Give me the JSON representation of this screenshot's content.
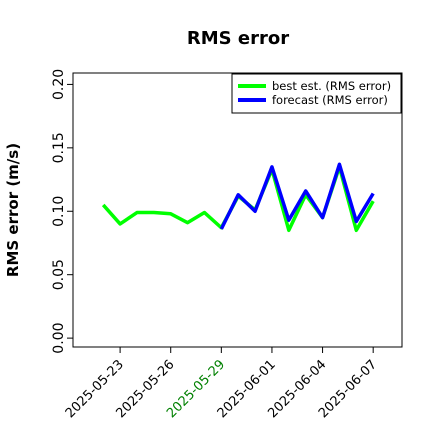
{
  "chart_data": {
    "type": "line",
    "title": "RMS error",
    "ylabel": "RMS error (m/s)",
    "x": [
      "2025-05-22",
      "2025-05-23",
      "2025-05-24",
      "2025-05-25",
      "2025-05-26",
      "2025-05-27",
      "2025-05-28",
      "2025-05-29",
      "2025-05-30",
      "2025-05-31",
      "2025-06-01",
      "2025-06-02",
      "2025-06-03",
      "2025-06-04",
      "2025-06-05",
      "2025-06-06",
      "2025-06-07"
    ],
    "series": [
      {
        "name": "best est. (RMS error)",
        "color": "#00ff00",
        "values": [
          0.105,
          0.09,
          0.099,
          0.099,
          0.098,
          0.091,
          0.099,
          0.087,
          0.112,
          0.101,
          0.133,
          0.085,
          0.113,
          0.095,
          0.135,
          0.085,
          0.108
        ]
      },
      {
        "name": "forecast (RMS error)",
        "color": "#0000ff",
        "values": [
          null,
          null,
          null,
          null,
          null,
          null,
          null,
          0.086,
          0.113,
          0.1,
          0.135,
          0.093,
          0.116,
          0.095,
          0.137,
          0.092,
          0.114
        ]
      }
    ],
    "xlim": [
      "2025-05-20T05:00",
      "2025-06-08T17:00"
    ],
    "xticks": [
      "2025-05-23",
      "2025-05-26",
      "2025-05-29",
      "2025-06-01",
      "2025-06-04",
      "2025-06-07"
    ],
    "xtick_colors": [
      "black",
      "black",
      "green",
      "black",
      "black",
      "black"
    ],
    "ylim": [
      -0.007,
      0.209
    ],
    "yticks": [
      {
        "value": 0,
        "label": "0.00"
      },
      {
        "value": 0.05,
        "label": "0.05"
      },
      {
        "value": 0.1,
        "label": "0.10"
      },
      {
        "value": 0.15,
        "label": "0.15"
      },
      {
        "value": 0.2,
        "label": "0.20"
      }
    ],
    "legend": "upper right"
  }
}
